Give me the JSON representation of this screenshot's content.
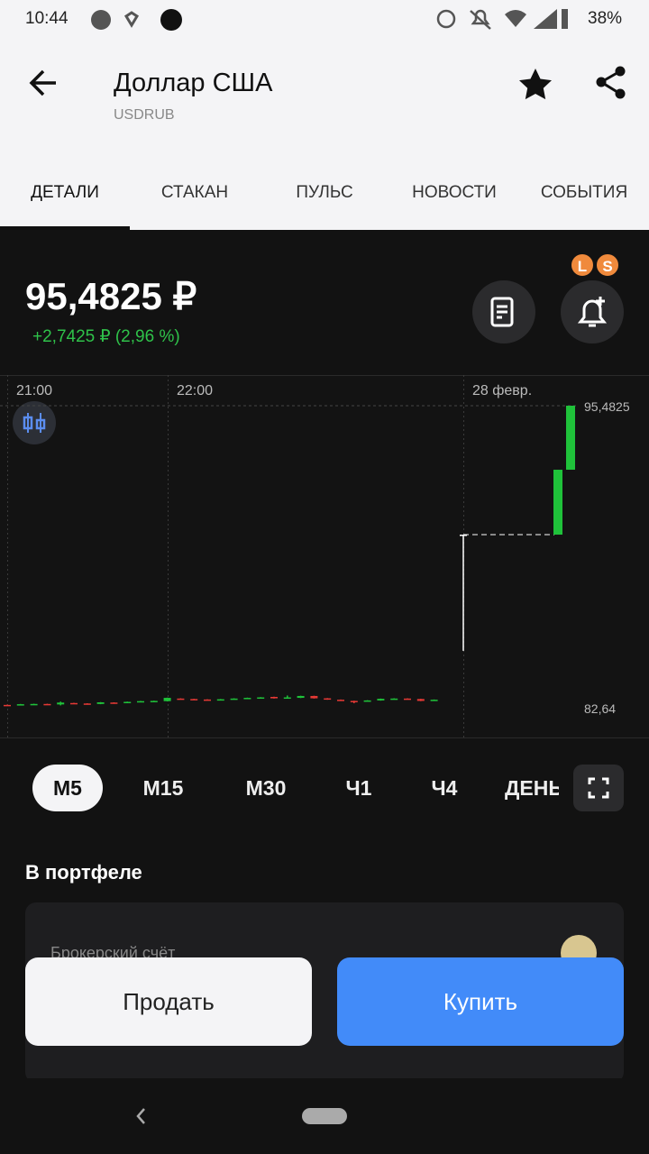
{
  "status_bar": {
    "time": "10:44",
    "battery": "38%"
  },
  "header": {
    "title": "Доллар США",
    "ticker": "USDRUB"
  },
  "tabs": [
    "ДЕТАЛИ",
    "СТАКАН",
    "ПУЛЬС",
    "НОВОСТИ",
    "СОБЫТИЯ"
  ],
  "quote": {
    "price": "95,4825 ₽",
    "change": "+2,7425 ₽ (2,96 %)",
    "badges": [
      "L",
      "S"
    ]
  },
  "chart_data": {
    "type": "candlestick",
    "xticks": [
      "21:00",
      "22:00",
      "28 февр."
    ],
    "ylim": [
      82.64,
      95.4825
    ],
    "yticks": [
      {
        "value": 95.4825,
        "label": "95,4825"
      },
      {
        "value": 82.64,
        "label": "82,64"
      }
    ],
    "up_color": "#1fc23a",
    "down_color": "#e53935",
    "flat_color": "#ffffff",
    "candles": [
      {
        "open": 82.76,
        "high": 82.77,
        "low": 82.74,
        "close": 82.75
      },
      {
        "open": 82.75,
        "high": 82.8,
        "low": 82.74,
        "close": 82.79
      },
      {
        "open": 82.77,
        "high": 82.81,
        "low": 82.76,
        "close": 82.8
      },
      {
        "open": 82.8,
        "high": 82.81,
        "low": 82.77,
        "close": 82.78
      },
      {
        "open": 82.78,
        "high": 82.9,
        "low": 82.74,
        "close": 82.86
      },
      {
        "open": 82.84,
        "high": 82.85,
        "low": 82.8,
        "close": 82.81
      },
      {
        "open": 82.82,
        "high": 82.83,
        "low": 82.79,
        "close": 82.8
      },
      {
        "open": 82.8,
        "high": 82.88,
        "low": 82.79,
        "close": 82.87
      },
      {
        "open": 82.86,
        "high": 82.87,
        "low": 82.83,
        "close": 82.84
      },
      {
        "open": 82.85,
        "high": 82.9,
        "low": 82.84,
        "close": 82.89
      },
      {
        "open": 82.88,
        "high": 82.93,
        "low": 82.87,
        "close": 82.92
      },
      {
        "open": 82.91,
        "high": 82.94,
        "low": 82.9,
        "close": 82.93
      },
      {
        "open": 82.92,
        "high": 83.07,
        "low": 82.91,
        "close": 83.06
      },
      {
        "open": 83.03,
        "high": 83.04,
        "low": 82.99,
        "close": 83.0
      },
      {
        "open": 83.01,
        "high": 83.02,
        "low": 82.98,
        "close": 82.99
      },
      {
        "open": 82.99,
        "high": 83.0,
        "low": 82.96,
        "close": 82.97
      },
      {
        "open": 82.97,
        "high": 83.01,
        "low": 82.96,
        "close": 83.0
      },
      {
        "open": 83.0,
        "high": 83.04,
        "low": 82.99,
        "close": 83.03
      },
      {
        "open": 83.03,
        "high": 83.07,
        "low": 83.02,
        "close": 83.06
      },
      {
        "open": 83.05,
        "high": 83.09,
        "low": 83.04,
        "close": 83.08
      },
      {
        "open": 83.1,
        "high": 83.11,
        "low": 83.03,
        "close": 83.04
      },
      {
        "open": 83.06,
        "high": 83.16,
        "low": 83.05,
        "close": 83.08
      },
      {
        "open": 83.06,
        "high": 83.15,
        "low": 83.05,
        "close": 83.14
      },
      {
        "open": 83.14,
        "high": 83.15,
        "low": 83.03,
        "close": 83.04
      },
      {
        "open": 83.04,
        "high": 83.05,
        "low": 82.98,
        "close": 82.99
      },
      {
        "open": 82.98,
        "high": 82.99,
        "low": 82.93,
        "close": 82.94
      },
      {
        "open": 82.93,
        "high": 82.94,
        "low": 82.83,
        "close": 82.91
      },
      {
        "open": 82.92,
        "high": 82.96,
        "low": 82.91,
        "close": 82.95
      },
      {
        "open": 82.95,
        "high": 83.03,
        "low": 82.94,
        "close": 83.02
      },
      {
        "open": 83.0,
        "high": 83.04,
        "low": 82.99,
        "close": 83.03
      },
      {
        "open": 83.03,
        "high": 83.04,
        "low": 83.0,
        "close": 83.01
      },
      {
        "open": 83.01,
        "high": 83.02,
        "low": 82.92,
        "close": 82.93
      },
      {
        "open": 82.97,
        "high": 82.99,
        "low": 82.96,
        "close": 82.98
      },
      {
        "open": 90.0,
        "high": 90.0,
        "low": 85.06,
        "close": 90.0
      },
      {
        "open": 90.0,
        "high": 92.76,
        "low": 90.0,
        "close": 92.76
      },
      {
        "open": 92.76,
        "high": 95.4825,
        "low": 92.76,
        "close": 95.4825
      }
    ]
  },
  "timeframes": [
    "M5",
    "M15",
    "M30",
    "Ч1",
    "Ч4",
    "ДЕНЬ"
  ],
  "portfolio": {
    "title": "В портфеле",
    "account": "Брокерский счёт"
  },
  "actions": {
    "sell": "Продать",
    "buy": "Купить"
  }
}
